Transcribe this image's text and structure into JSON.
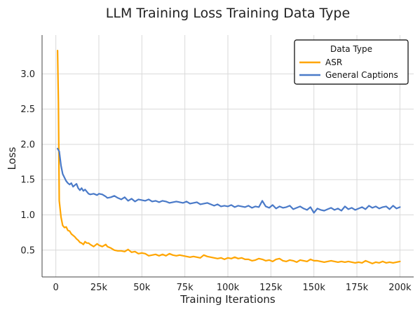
{
  "chart_data": {
    "type": "line",
    "title": "LLM Training Loss Training Data Type",
    "xlabel": "Training Iterations",
    "ylabel": "Loss",
    "xlim": [
      -8000,
      208000
    ],
    "ylim": [
      0.12,
      3.55
    ],
    "xticks": [
      0,
      25000,
      50000,
      75000,
      100000,
      125000,
      150000,
      175000,
      200000
    ],
    "xtick_labels": [
      "0",
      "25k",
      "50k",
      "75k",
      "100k",
      "125k",
      "150k",
      "175k",
      "200k"
    ],
    "yticks": [
      0.5,
      1.0,
      1.5,
      2.0,
      2.5,
      3.0
    ],
    "ytick_labels": [
      "0.5",
      "1.0",
      "1.5",
      "2.0",
      "2.5",
      "3.0"
    ],
    "grid": true,
    "legend": {
      "title": "Data Type",
      "placement": "top-right"
    },
    "series": [
      {
        "name": "ASR",
        "color": "#FFA500",
        "x": [
          1000,
          1500,
          2000,
          3000,
          4000,
          5000,
          6000,
          7000,
          8000,
          9000,
          10000,
          11000,
          12000,
          13000,
          14000,
          15000,
          16000,
          17000,
          18000,
          19000,
          20000,
          22000,
          24000,
          25000,
          27000,
          29000,
          30000,
          32000,
          34000,
          36000,
          38000,
          40000,
          42000,
          44000,
          46000,
          48000,
          50000,
          52000,
          54000,
          56000,
          58000,
          60000,
          62000,
          64000,
          66000,
          68000,
          70000,
          72000,
          74000,
          76000,
          78000,
          80000,
          82000,
          84000,
          86000,
          88000,
          90000,
          92000,
          94000,
          96000,
          98000,
          100000,
          102000,
          104000,
          106000,
          108000,
          110000,
          112000,
          114000,
          116000,
          118000,
          120000,
          122000,
          124000,
          126000,
          128000,
          130000,
          132000,
          134000,
          136000,
          138000,
          140000,
          142000,
          144000,
          146000,
          148000,
          150000,
          152000,
          154000,
          156000,
          158000,
          160000,
          162000,
          164000,
          166000,
          168000,
          170000,
          172000,
          174000,
          176000,
          178000,
          180000,
          182000,
          184000,
          186000,
          188000,
          190000,
          192000,
          194000,
          196000,
          198000,
          200000
        ],
        "y": [
          3.33,
          2.6,
          1.2,
          0.97,
          0.85,
          0.82,
          0.83,
          0.78,
          0.77,
          0.73,
          0.71,
          0.69,
          0.66,
          0.64,
          0.61,
          0.6,
          0.58,
          0.62,
          0.6,
          0.6,
          0.58,
          0.55,
          0.59,
          0.57,
          0.55,
          0.58,
          0.55,
          0.53,
          0.5,
          0.49,
          0.49,
          0.48,
          0.51,
          0.47,
          0.48,
          0.45,
          0.46,
          0.45,
          0.42,
          0.43,
          0.44,
          0.42,
          0.44,
          0.42,
          0.45,
          0.43,
          0.42,
          0.43,
          0.42,
          0.41,
          0.4,
          0.41,
          0.4,
          0.39,
          0.43,
          0.41,
          0.4,
          0.39,
          0.38,
          0.39,
          0.37,
          0.39,
          0.38,
          0.4,
          0.38,
          0.39,
          0.37,
          0.37,
          0.35,
          0.36,
          0.38,
          0.37,
          0.35,
          0.36,
          0.34,
          0.37,
          0.38,
          0.35,
          0.34,
          0.36,
          0.35,
          0.33,
          0.36,
          0.35,
          0.34,
          0.37,
          0.35,
          0.35,
          0.34,
          0.33,
          0.34,
          0.35,
          0.34,
          0.33,
          0.34,
          0.33,
          0.34,
          0.33,
          0.32,
          0.33,
          0.32,
          0.35,
          0.33,
          0.31,
          0.33,
          0.32,
          0.34,
          0.32,
          0.33,
          0.32,
          0.33,
          0.34
        ]
      },
      {
        "name": "General Captions",
        "color": "#4A7AC8",
        "x": [
          1000,
          2000,
          3000,
          4000,
          5000,
          6000,
          7000,
          8000,
          9000,
          10000,
          11000,
          12000,
          13000,
          14000,
          15000,
          16000,
          17000,
          18000,
          19000,
          20000,
          22000,
          24000,
          25000,
          27000,
          29000,
          30000,
          32000,
          34000,
          36000,
          38000,
          40000,
          42000,
          44000,
          46000,
          48000,
          50000,
          52000,
          54000,
          56000,
          58000,
          60000,
          62000,
          64000,
          66000,
          68000,
          70000,
          72000,
          74000,
          76000,
          78000,
          80000,
          82000,
          84000,
          86000,
          88000,
          90000,
          92000,
          94000,
          96000,
          98000,
          100000,
          102000,
          104000,
          106000,
          108000,
          110000,
          112000,
          114000,
          116000,
          118000,
          120000,
          122000,
          124000,
          126000,
          128000,
          130000,
          132000,
          134000,
          136000,
          138000,
          140000,
          142000,
          144000,
          146000,
          148000,
          150000,
          152000,
          154000,
          156000,
          158000,
          160000,
          162000,
          164000,
          166000,
          168000,
          170000,
          172000,
          174000,
          176000,
          178000,
          180000,
          182000,
          184000,
          186000,
          188000,
          190000,
          192000,
          194000,
          196000,
          198000,
          200000
        ],
        "y": [
          1.94,
          1.9,
          1.7,
          1.58,
          1.53,
          1.48,
          1.45,
          1.43,
          1.45,
          1.4,
          1.42,
          1.44,
          1.38,
          1.35,
          1.38,
          1.34,
          1.36,
          1.33,
          1.3,
          1.29,
          1.3,
          1.28,
          1.3,
          1.29,
          1.26,
          1.24,
          1.25,
          1.27,
          1.24,
          1.22,
          1.25,
          1.2,
          1.23,
          1.19,
          1.22,
          1.21,
          1.2,
          1.22,
          1.19,
          1.2,
          1.18,
          1.2,
          1.19,
          1.17,
          1.18,
          1.19,
          1.18,
          1.17,
          1.19,
          1.16,
          1.17,
          1.18,
          1.15,
          1.16,
          1.17,
          1.15,
          1.13,
          1.15,
          1.12,
          1.13,
          1.12,
          1.14,
          1.11,
          1.13,
          1.12,
          1.11,
          1.13,
          1.1,
          1.12,
          1.11,
          1.2,
          1.12,
          1.1,
          1.14,
          1.09,
          1.12,
          1.1,
          1.11,
          1.13,
          1.08,
          1.1,
          1.12,
          1.09,
          1.07,
          1.11,
          1.03,
          1.09,
          1.07,
          1.06,
          1.08,
          1.1,
          1.07,
          1.09,
          1.06,
          1.12,
          1.08,
          1.1,
          1.07,
          1.09,
          1.11,
          1.08,
          1.13,
          1.1,
          1.12,
          1.09,
          1.11,
          1.12,
          1.08,
          1.13,
          1.09,
          1.11
        ]
      }
    ]
  }
}
